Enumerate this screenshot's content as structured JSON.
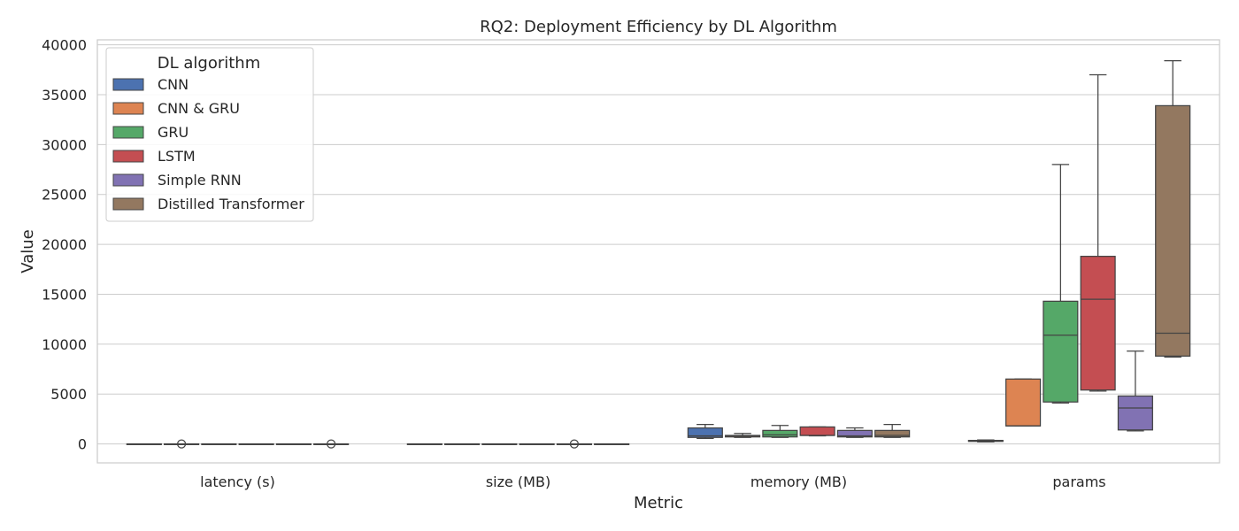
{
  "chart_data": {
    "type": "box",
    "title": "RQ2: Deployment Efficiency by DL Algorithm",
    "xlabel": "Metric",
    "ylabel": "Value",
    "ylim": [
      -1900,
      40500
    ],
    "yticks": [
      0,
      5000,
      10000,
      15000,
      20000,
      25000,
      30000,
      35000,
      40000
    ],
    "grid": true,
    "categories": [
      "latency (s)",
      "size (MB)",
      "memory (MB)",
      "params"
    ],
    "legend": {
      "title": "DL algorithm",
      "placement": "top-left"
    },
    "series": [
      {
        "name": "CNN",
        "color": "#4c72b0",
        "boxes": [
          {
            "min": 0,
            "q1": 0,
            "median": 0,
            "q3": 0,
            "max": 0,
            "outliers": []
          },
          {
            "min": 0,
            "q1": 0,
            "median": 0,
            "q3": 0,
            "max": 0,
            "outliers": []
          },
          {
            "min": 550,
            "q1": 650,
            "median": 800,
            "q3": 1600,
            "max": 1950,
            "outliers": []
          },
          {
            "min": 200,
            "q1": 250,
            "median": 300,
            "q3": 350,
            "max": 400,
            "outliers": []
          }
        ]
      },
      {
        "name": "CNN & GRU",
        "color": "#dd8452",
        "boxes": [
          {
            "min": 0,
            "q1": 0,
            "median": 0,
            "q3": 0,
            "max": 0,
            "outliers": [
              0
            ]
          },
          {
            "min": 0,
            "q1": 0,
            "median": 0,
            "q3": 0,
            "max": 0,
            "outliers": []
          },
          {
            "min": 650,
            "q1": 700,
            "median": 800,
            "q3": 850,
            "max": 1050,
            "outliers": []
          },
          {
            "min": 1800,
            "q1": 1800,
            "median": 1800,
            "q3": 6500,
            "max": 6500,
            "outliers": []
          }
        ]
      },
      {
        "name": "GRU",
        "color": "#55a868",
        "boxes": [
          {
            "min": 0,
            "q1": 0,
            "median": 0,
            "q3": 0,
            "max": 0,
            "outliers": []
          },
          {
            "min": 0,
            "q1": 0,
            "median": 0,
            "q3": 0,
            "max": 0,
            "outliers": []
          },
          {
            "min": 650,
            "q1": 700,
            "median": 900,
            "q3": 1350,
            "max": 1850,
            "outliers": []
          },
          {
            "min": 4100,
            "q1": 4200,
            "median": 10900,
            "q3": 14300,
            "max": 28000,
            "outliers": []
          }
        ]
      },
      {
        "name": "LSTM",
        "color": "#c44e52",
        "boxes": [
          {
            "min": 0,
            "q1": 0,
            "median": 0,
            "q3": 0,
            "max": 0,
            "outliers": []
          },
          {
            "min": 0,
            "q1": 0,
            "median": 0,
            "q3": 0,
            "max": 0,
            "outliers": []
          },
          {
            "min": 800,
            "q1": 850,
            "median": 850,
            "q3": 1700,
            "max": 1700,
            "outliers": []
          },
          {
            "min": 5300,
            "q1": 5400,
            "median": 14500,
            "q3": 18800,
            "max": 37000,
            "outliers": []
          }
        ]
      },
      {
        "name": "Simple RNN",
        "color": "#8172b3",
        "boxes": [
          {
            "min": 0,
            "q1": 0,
            "median": 0,
            "q3": 0,
            "max": 0,
            "outliers": []
          },
          {
            "min": 0,
            "q1": 0,
            "median": 0,
            "q3": 0,
            "max": 0,
            "outliers": [
              0
            ]
          },
          {
            "min": 650,
            "q1": 700,
            "median": 800,
            "q3": 1350,
            "max": 1600,
            "outliers": []
          },
          {
            "min": 1300,
            "q1": 1400,
            "median": 3600,
            "q3": 4800,
            "max": 9300,
            "outliers": []
          }
        ]
      },
      {
        "name": "Distilled Transformer",
        "color": "#937860",
        "boxes": [
          {
            "min": 0,
            "q1": 0,
            "median": 0,
            "q3": 0,
            "max": 0,
            "outliers": [
              0
            ]
          },
          {
            "min": 0,
            "q1": 0,
            "median": 0,
            "q3": 0,
            "max": 0,
            "outliers": []
          },
          {
            "min": 650,
            "q1": 700,
            "median": 850,
            "q3": 1350,
            "max": 1950,
            "outliers": []
          },
          {
            "min": 8700,
            "q1": 8800,
            "median": 11100,
            "q3": 33900,
            "max": 38400,
            "outliers": []
          }
        ]
      }
    ]
  }
}
